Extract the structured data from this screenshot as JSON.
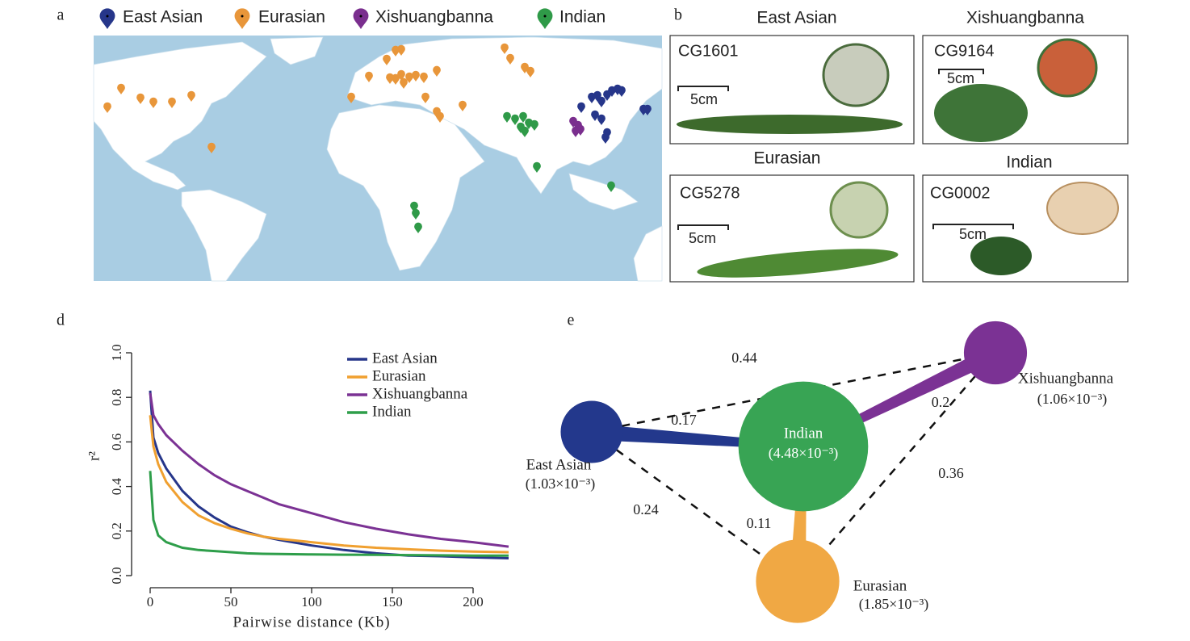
{
  "panel_labels": [
    "a",
    "b",
    "d",
    "e"
  ],
  "map": {
    "legend": [
      {
        "name": "East Asian",
        "color": "#26368a"
      },
      {
        "name": "Eurasian",
        "color": "#e8963a"
      },
      {
        "name": "Xishuangbanna",
        "color": "#7a2e8e"
      },
      {
        "name": "Indian",
        "color": "#2f9a48"
      }
    ]
  },
  "photos": [
    {
      "group": "East Asian",
      "id": "CG1601",
      "scale": "5cm"
    },
    {
      "group": "Xishuangbanna",
      "id": "CG9164",
      "scale": "5cm"
    },
    {
      "group": "Eurasian",
      "id": "CG5278",
      "scale": "5cm"
    },
    {
      "group": "Indian",
      "id": "CG0002",
      "scale": "5cm"
    }
  ],
  "chart_data": {
    "type": "line",
    "xlabel": "Pairwise distance (Kb)",
    "ylabel": "r²",
    "x": [
      0,
      2,
      5,
      10,
      20,
      30,
      40,
      50,
      60,
      70,
      80,
      100,
      120,
      140,
      160,
      180,
      200,
      222
    ],
    "series": [
      {
        "name": "East Asian",
        "color": "#26368a",
        "values": [
          0.83,
          0.62,
          0.55,
          0.48,
          0.38,
          0.31,
          0.26,
          0.22,
          0.195,
          0.175,
          0.16,
          0.135,
          0.115,
          0.1,
          0.09,
          0.087,
          0.082,
          0.078
        ]
      },
      {
        "name": "Eurasian",
        "color": "#f0a030",
        "values": [
          0.72,
          0.58,
          0.5,
          0.42,
          0.33,
          0.27,
          0.235,
          0.21,
          0.19,
          0.175,
          0.165,
          0.15,
          0.135,
          0.125,
          0.118,
          0.112,
          0.108,
          0.105
        ]
      },
      {
        "name": "Xishuangbanna",
        "color": "#7b3294",
        "values": [
          0.82,
          0.72,
          0.68,
          0.63,
          0.56,
          0.5,
          0.45,
          0.41,
          0.38,
          0.35,
          0.32,
          0.28,
          0.24,
          0.21,
          0.185,
          0.165,
          0.15,
          0.13
        ]
      },
      {
        "name": "Indian",
        "color": "#2e9e4a",
        "values": [
          0.47,
          0.25,
          0.18,
          0.15,
          0.125,
          0.115,
          0.11,
          0.105,
          0.1,
          0.098,
          0.097,
          0.095,
          0.094,
          0.093,
          0.092,
          0.091,
          0.09,
          0.09
        ]
      }
    ],
    "xlim": [
      -4,
      222
    ],
    "xticks": [
      0,
      50,
      100,
      150,
      200
    ],
    "ylim": [
      0,
      1
    ],
    "yticks": [
      {
        "value": 0,
        "label": "0.0"
      },
      0.2,
      0.4,
      0.6,
      0.8,
      {
        "value": 1,
        "label": "1.0"
      }
    ],
    "legend": "top-right"
  },
  "network": {
    "nodes": [
      {
        "name": "Indian",
        "value": 0.00448,
        "value_label": "(4.48×10⁻³)",
        "color": "#38a454"
      },
      {
        "name": "East Asian",
        "value": 0.00103,
        "value_label": "(1.03×10⁻³)",
        "color": "#23388c"
      },
      {
        "name": "Xishuangbanna",
        "value": 0.00106,
        "value_label": "(1.06×10⁻³)",
        "color": "#7b3294"
      },
      {
        "name": "Eurasian",
        "value": 0.00185,
        "value_label": "(1.85×10⁻³)",
        "color": "#f0a844"
      }
    ],
    "edges": [
      {
        "source": 0,
        "target": 1,
        "value": 0.17,
        "style": "solid"
      },
      {
        "source": 0,
        "target": 2,
        "value": 0.2,
        "style": "solid"
      },
      {
        "source": 0,
        "target": 3,
        "value": 0.11,
        "style": "solid"
      },
      {
        "source": 1,
        "target": 2,
        "value": 0.44,
        "style": "dashed"
      },
      {
        "source": 1,
        "target": 3,
        "value": 0.24,
        "style": "dashed"
      },
      {
        "source": 2,
        "target": 3,
        "value": 0.36,
        "style": "dashed"
      }
    ]
  }
}
